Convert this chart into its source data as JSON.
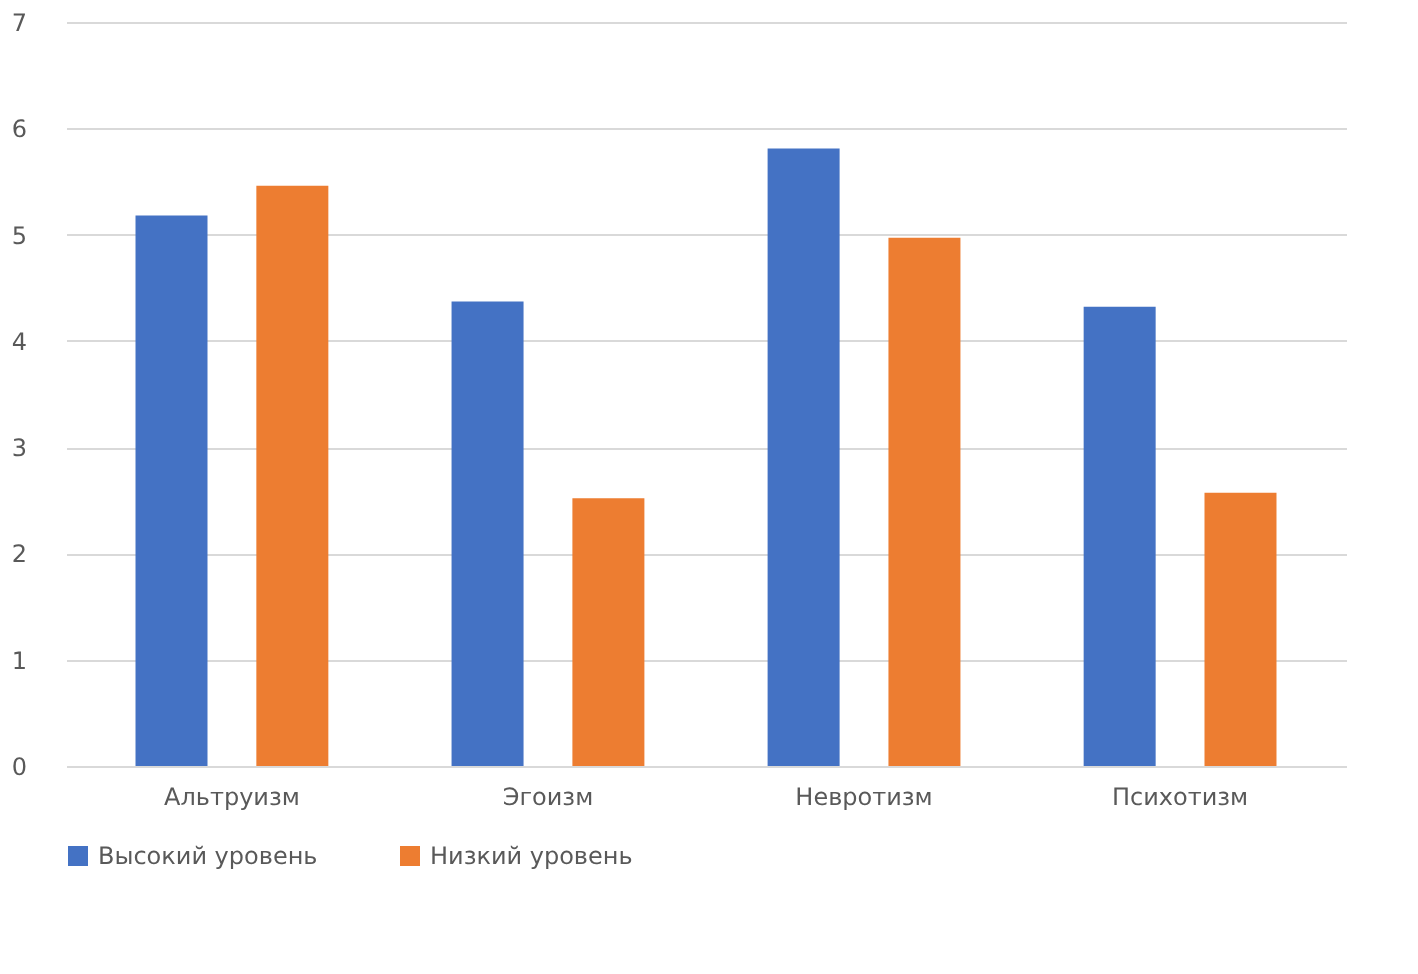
{
  "chart_data": {
    "type": "bar",
    "categories": [
      "Альтруизм",
      "Эгоизм",
      "Невротизм",
      "Психотизм"
    ],
    "series": [
      {
        "name": "Высокий уровень",
        "color": "#4472c4",
        "values": [
          5.18,
          4.37,
          5.81,
          4.32
        ]
      },
      {
        "name": "Низкий уровень",
        "color": "#ed7d31",
        "values": [
          5.46,
          2.52,
          4.97,
          2.57
        ]
      }
    ],
    "ylim": [
      0,
      7
    ],
    "yticks": [
      0,
      1,
      2,
      3,
      4,
      5,
      6,
      7
    ],
    "grid": "y",
    "legend": "bottom"
  }
}
